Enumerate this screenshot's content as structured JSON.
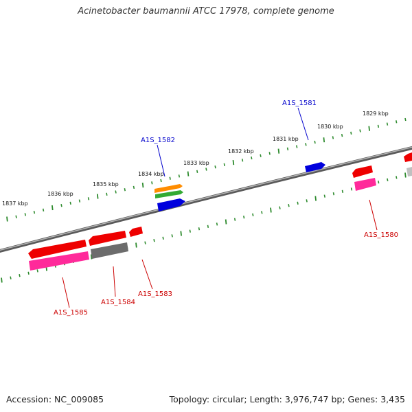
{
  "title": "Acinetobacter baumannii ATCC 17978, complete genome",
  "footer": {
    "accession": "Accession: NC_009085",
    "summary": "Topology: circular; Length: 3,976,747 bp; Genes: 3,435"
  },
  "colors": {
    "backbone": "#808080",
    "tick": "#2e8b2e",
    "forward_label": "#0000cc",
    "reverse_label": "#cc0000",
    "cds_red": "#ee0000",
    "rna_pink": "#ff2a9a",
    "pseudo_gray": "#6c6c6c",
    "orange": "#ff8c00",
    "green": "#33aa33",
    "blue": "#0000dd"
  },
  "scale_labels": [
    "1829 kbp",
    "1830 kbp",
    "1831 kbp",
    "1832 kbp",
    "1833 kbp",
    "1834 kbp",
    "1835 kbp",
    "1836 kbp",
    "1837 kbp"
  ],
  "gene_labels": [
    {
      "text": "A1S_1581",
      "strand": "forward"
    },
    {
      "text": "A1S_1582",
      "strand": "forward"
    },
    {
      "text": "A1S_1580",
      "strand": "reverse"
    },
    {
      "text": "A1S_1583",
      "strand": "reverse"
    },
    {
      "text": "A1S_1584",
      "strand": "reverse"
    },
    {
      "text": "A1S_1585",
      "strand": "reverse"
    }
  ]
}
